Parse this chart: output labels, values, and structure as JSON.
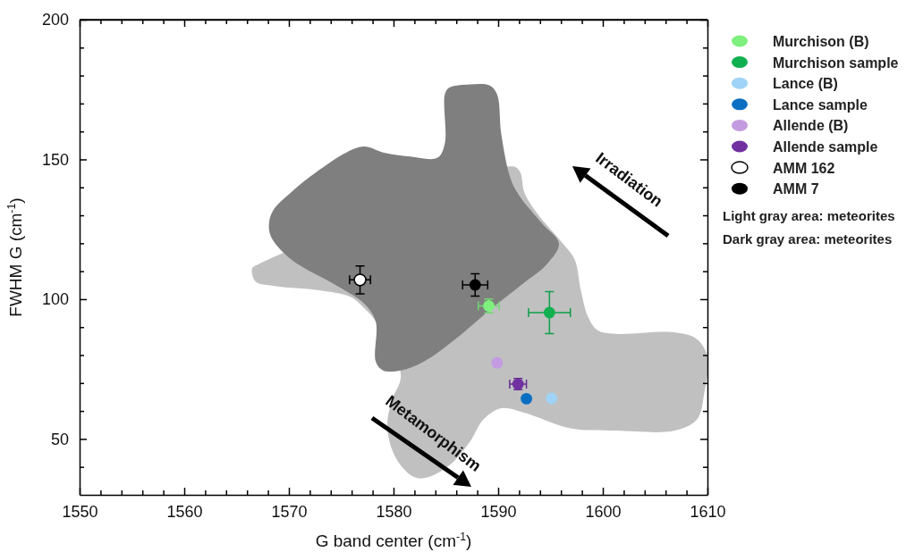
{
  "chart_data": {
    "type": "scatter",
    "xlabel": "G band center (cm$^{-1}$)",
    "ylabel": "FWHM G (cm$^{-1}$)",
    "xlim": [
      1550,
      1610
    ],
    "ylim": [
      30,
      200
    ],
    "xticks": [
      1550,
      {
        "value": 1552,
        "label": null
      },
      {
        "value": 1554,
        "label": null
      },
      {
        "value": 1556,
        "label": null
      },
      {
        "value": 1558,
        "label": null
      },
      1560,
      {
        "value": 1562,
        "label": null
      },
      {
        "value": 1564,
        "label": null
      },
      {
        "value": 1566,
        "label": null
      },
      {
        "value": 1568,
        "label": null
      },
      1570,
      {
        "value": 1572,
        "label": null
      },
      {
        "value": 1574,
        "label": null
      },
      {
        "value": 1576,
        "label": null
      },
      {
        "value": 1578,
        "label": null
      },
      1580,
      {
        "value": 1582,
        "label": null
      },
      {
        "value": 1584,
        "label": null
      },
      {
        "value": 1586,
        "label": null
      },
      {
        "value": 1588,
        "label": null
      },
      1590,
      {
        "value": 1592,
        "label": null
      },
      {
        "value": 1594,
        "label": null
      },
      {
        "value": 1596,
        "label": null
      },
      {
        "value": 1598,
        "label": null
      },
      1600,
      {
        "value": 1602,
        "label": null
      },
      {
        "value": 1604,
        "label": null
      },
      {
        "value": 1606,
        "label": null
      },
      {
        "value": 1608,
        "label": null
      },
      1610
    ],
    "yticks": [
      {
        "value": 40,
        "label": null
      },
      50,
      {
        "value": 60,
        "label": null
      },
      {
        "value": 70,
        "label": null
      },
      {
        "value": 80,
        "label": null
      },
      {
        "value": 90,
        "label": null
      },
      100,
      {
        "value": 110,
        "label": null
      },
      {
        "value": 120,
        "label": null
      },
      {
        "value": 130,
        "label": null
      },
      {
        "value": 140,
        "label": null
      },
      150,
      {
        "value": 160,
        "label": null
      },
      {
        "value": 170,
        "label": null
      },
      {
        "value": 180,
        "label": null
      },
      {
        "value": 190,
        "label": null
      },
      200
    ],
    "marker": "circle",
    "legend": "right",
    "grid": false,
    "series": [
      {
        "type": "area",
        "color": "#c0c0c0",
        "marker": "none",
        "x": [
          1566.5,
          1567.2,
          1591.4,
          1592.1,
          1592.5,
          1593.8,
          1596.0,
          1597.3,
          1597.9,
          1598.6,
          1599.5,
          1601.2,
          1606.9,
          1609.0,
          1610.0,
          1609.7,
          1609.0,
          1606.9,
          1601.2,
          1596.9,
          1592.5,
          1590.3,
          1588.6,
          1587.3,
          1585.5,
          1583.3,
          1582.0,
          1580.3,
          1579.4,
          1579.8,
          1580.7,
          1578.3,
          1577.2,
          1575.9,
          1572.9,
          1568.5,
          1566.8
        ],
        "values": [
          111.1,
          112.7,
          147.5,
          145.4,
          138.2,
          130.3,
          120.7,
          114.3,
          103.2,
          93.6,
          88.9,
          87.6,
          88.1,
          85.7,
          79.3,
          66.6,
          57.0,
          53.0,
          53.0,
          53.8,
          59.4,
          61.0,
          57.0,
          49.0,
          41.1,
          36.3,
          36.3,
          42.7,
          53.8,
          63.4,
          72.9,
          92.0,
          96.8,
          100.8,
          103.2,
          104.8,
          106.4
        ]
      },
      {
        "type": "area",
        "color": "#7f7f7f",
        "marker": "none",
        "x": [
          1568.1,
          1568.5,
          1570.2,
          1572.9,
          1575.5,
          1577.2,
          1579.0,
          1581.6,
          1584.2,
          1584.9,
          1584.9,
          1585.3,
          1587.3,
          1589.2,
          1589.9,
          1590.3,
          1591.2,
          1592.1,
          1594.2,
          1595.8,
          1594.7,
          1592.1,
          1589.4,
          1585.9,
          1582.9,
          1580.7,
          1579.0,
          1578.3,
          1578.3,
          1577.2,
          1574.6,
          1570.2,
          1568.3
        ],
        "values": [
          127.1,
          131.8,
          138.2,
          146.2,
          152.5,
          154.6,
          152.5,
          151.0,
          150.6,
          155.7,
          173.2,
          175.6,
          176.8,
          176.4,
          173.2,
          158.9,
          143.0,
          136.6,
          127.1,
          119.9,
          112.7,
          104.8,
          96.8,
          85.7,
          77.7,
          74.5,
          74.5,
          77.7,
          92.0,
          98.4,
          104.8,
          114.3,
          122.3
        ]
      },
      {
        "name": "Murchison (B)",
        "color": "#7ef07e",
        "x": [
          1589.1
        ],
        "values": [
          97.6
        ],
        "errors": [
          2.5
        ],
        "xerrors": [
          1
        ]
      },
      {
        "name": "Murchison sample",
        "color": "#10b050",
        "x": [
          1594.9
        ],
        "values": [
          95.2
        ],
        "errors": [
          7.5
        ],
        "xerrors": [
          2
        ]
      },
      {
        "name": "Lance (B)",
        "color": "#9fd3f7",
        "x": [
          1595.1
        ],
        "values": [
          64.5
        ]
      },
      {
        "name": "Lance sample",
        "color": "#0a6fc2",
        "x": [
          1592.7
        ],
        "values": [
          64.4
        ]
      },
      {
        "name": "Allende (B)",
        "color": "#c39be0",
        "x": [
          1589.9
        ],
        "values": [
          77.2
        ]
      },
      {
        "name": "Allende sample",
        "color": "#7030a0",
        "x": [
          1591.9
        ],
        "values": [
          69.6
        ],
        "errors": [
          2
        ],
        "xerrors": [
          0.8
        ]
      },
      {
        "name": "AMM 162",
        "color": "#ffffff",
        "x": [
          1576.8
        ],
        "values": [
          106.9
        ],
        "errors": [
          5
        ],
        "xerrors": [
          1
        ]
      },
      {
        "name": "AMM 7",
        "color": "#000000",
        "x": [
          1587.8
        ],
        "values": [
          105.1
        ],
        "errors": [
          4
        ],
        "xerrors": [
          1.2
        ]
      }
    ],
    "annotations": [
      "Irradiation",
      "Metamorphism",
      "Light gray area: meteorites",
      "Dark gray area: meteorites"
    ]
  }
}
